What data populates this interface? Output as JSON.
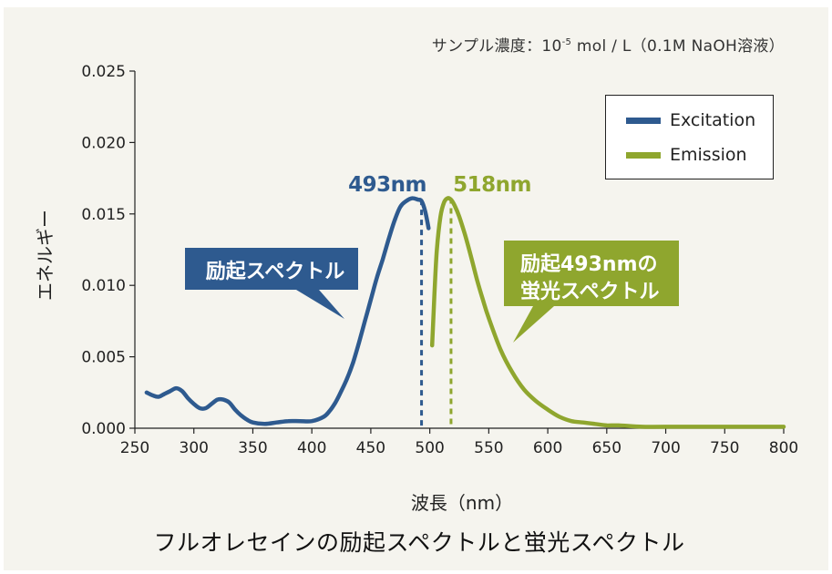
{
  "header": {
    "sample_prefix": "サンプル濃度：10",
    "sample_exp": "-5",
    "sample_suffix": " mol / L（0.1M NaOH溶液）"
  },
  "caption": "フルオレセインの励起スペクトルと蛍光スペクトル",
  "colors": {
    "excitation": "#2e5a8f",
    "emission": "#8fa62e",
    "axis": "#222222",
    "background": "#f5f4ee"
  },
  "chart_data": {
    "type": "line",
    "title": "フルオレセインの励起スペクトルと蛍光スペクトル",
    "xlabel": "波長（nm）",
    "ylabel": "エネルギー",
    "xlim": [
      250,
      800
    ],
    "ylim": [
      0,
      0.025
    ],
    "x_ticks": [
      250,
      300,
      350,
      400,
      450,
      500,
      550,
      600,
      650,
      700,
      750,
      800
    ],
    "x_tick_labels": [
      "250",
      "300",
      "350",
      "400",
      "450",
      "500",
      "550",
      "600",
      "650",
      "700",
      "750",
      "800"
    ],
    "y_ticks": [
      0,
      0.005,
      0.01,
      0.015,
      0.02,
      0.025
    ],
    "y_tick_labels": [
      "0.000",
      "0.005",
      "0.010",
      "0.015",
      "0.020",
      "0.025"
    ],
    "grid": false,
    "legend": {
      "position": "top-right",
      "entries": [
        {
          "name": "Excitation",
          "color": "#2e5a8f"
        },
        {
          "name": "Emission",
          "color": "#8fa62e"
        }
      ]
    },
    "series": [
      {
        "name": "Excitation",
        "color": "#2e5a8f",
        "points": [
          [
            260,
            0.0025
          ],
          [
            265,
            0.0023
          ],
          [
            270,
            0.0022
          ],
          [
            275,
            0.0024
          ],
          [
            280,
            0.0026
          ],
          [
            285,
            0.0028
          ],
          [
            290,
            0.0026
          ],
          [
            295,
            0.0021
          ],
          [
            300,
            0.0017
          ],
          [
            305,
            0.0014
          ],
          [
            310,
            0.0014
          ],
          [
            315,
            0.0017
          ],
          [
            320,
            0.002
          ],
          [
            325,
            0.002
          ],
          [
            330,
            0.0018
          ],
          [
            335,
            0.0013
          ],
          [
            340,
            0.0009
          ],
          [
            345,
            0.0006
          ],
          [
            350,
            0.0004
          ],
          [
            360,
            0.0003
          ],
          [
            370,
            0.0004
          ],
          [
            380,
            0.0005
          ],
          [
            390,
            0.0005
          ],
          [
            400,
            0.0005
          ],
          [
            410,
            0.0008
          ],
          [
            415,
            0.0012
          ],
          [
            420,
            0.0018
          ],
          [
            425,
            0.0026
          ],
          [
            430,
            0.0035
          ],
          [
            435,
            0.0046
          ],
          [
            440,
            0.006
          ],
          [
            445,
            0.0075
          ],
          [
            450,
            0.009
          ],
          [
            455,
            0.0105
          ],
          [
            460,
            0.0118
          ],
          [
            465,
            0.0132
          ],
          [
            470,
            0.0145
          ],
          [
            475,
            0.0155
          ],
          [
            480,
            0.0159
          ],
          [
            485,
            0.0161
          ],
          [
            490,
            0.016
          ],
          [
            493,
            0.0159
          ],
          [
            496,
            0.0152
          ],
          [
            499,
            0.014
          ]
        ]
      },
      {
        "name": "Emission",
        "color": "#8fa62e",
        "points": [
          [
            502,
            0.0058
          ],
          [
            504,
            0.0095
          ],
          [
            506,
            0.0125
          ],
          [
            509,
            0.0148
          ],
          [
            512,
            0.0158
          ],
          [
            515,
            0.0161
          ],
          [
            518,
            0.016
          ],
          [
            521,
            0.0156
          ],
          [
            525,
            0.0148
          ],
          [
            530,
            0.0135
          ],
          [
            535,
            0.012
          ],
          [
            540,
            0.0104
          ],
          [
            545,
            0.009
          ],
          [
            550,
            0.0077
          ],
          [
            560,
            0.0055
          ],
          [
            570,
            0.0039
          ],
          [
            580,
            0.0027
          ],
          [
            590,
            0.0019
          ],
          [
            600,
            0.0013
          ],
          [
            610,
            0.0008
          ],
          [
            620,
            0.0005
          ],
          [
            630,
            0.0004
          ],
          [
            640,
            0.0003
          ],
          [
            650,
            0.0002
          ],
          [
            660,
            0.0002
          ],
          [
            680,
            0.0001
          ],
          [
            700,
            0.0001
          ],
          [
            750,
            0.0001
          ],
          [
            800,
            0.0001
          ]
        ]
      }
    ],
    "annotations": [
      {
        "text": "493nm",
        "x": 493,
        "series": "Excitation",
        "marker": "dashed-vertical"
      },
      {
        "text": "518nm",
        "x": 518,
        "series": "Emission",
        "marker": "dashed-vertical"
      },
      {
        "text": "励起スペクトル",
        "series": "Excitation",
        "style": "callout"
      },
      {
        "text": "励起493nmの",
        "text2": "蛍光スペクトル",
        "series": "Emission",
        "style": "callout"
      }
    ]
  }
}
